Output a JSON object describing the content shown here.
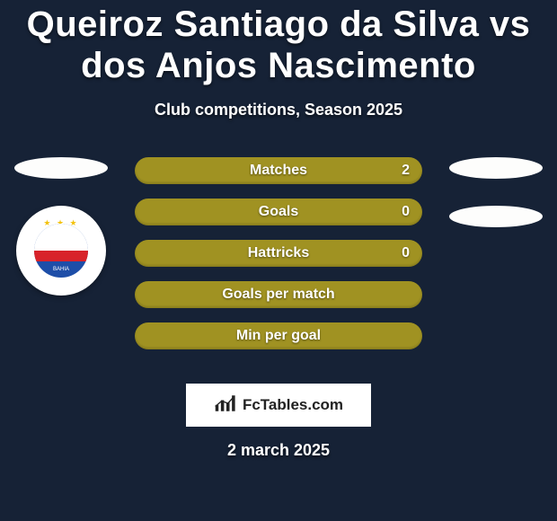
{
  "title": "Queiroz Santiago da Silva vs dos Anjos Nascimento",
  "subtitle": "Club competitions, Season 2025",
  "date": "2 march 2025",
  "footer_brand": "FcTables.com",
  "colors": {
    "page_bg": "#162236",
    "row_bg": "#a09222",
    "ellipse_bg": "#fdfdfc",
    "text": "#ffffff"
  },
  "left_badge": {
    "present": true,
    "semantic": "bahia-crest"
  },
  "stats": [
    {
      "label": "Matches",
      "value": "2",
      "show_value": true,
      "bg": "#a09222"
    },
    {
      "label": "Goals",
      "value": "0",
      "show_value": true,
      "bg": "#a09222"
    },
    {
      "label": "Hattricks",
      "value": "0",
      "show_value": true,
      "bg": "#a09222"
    },
    {
      "label": "Goals per match",
      "value": "",
      "show_value": false,
      "bg": "#a09222"
    },
    {
      "label": "Min per goal",
      "value": "",
      "show_value": false,
      "bg": "#a09222"
    }
  ]
}
